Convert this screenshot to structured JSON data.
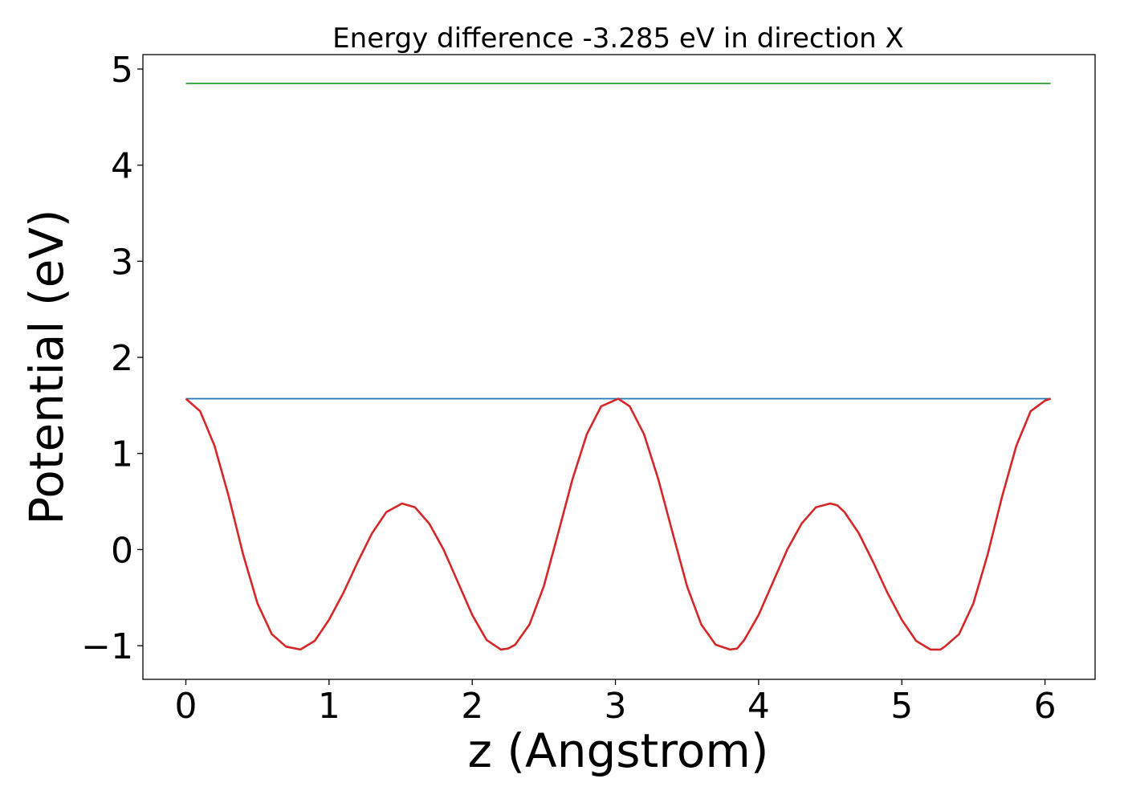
{
  "chart_data": {
    "type": "line",
    "title": "Energy difference -3.285 eV in direction X",
    "xlabel": "z (Angstrom)",
    "ylabel": "Potential (eV)",
    "xlim": [
      -0.3,
      6.35
    ],
    "ylim": [
      -1.35,
      5.15
    ],
    "grid": false,
    "xticks": [
      0,
      1,
      2,
      3,
      4,
      5,
      6
    ],
    "xtick_labels": [
      "0",
      "1",
      "2",
      "3",
      "4",
      "5",
      "6"
    ],
    "yticks": [
      -1,
      0,
      1,
      2,
      3,
      4,
      5
    ],
    "ytick_labels": [
      "−1",
      "0",
      "1",
      "2",
      "3",
      "4",
      "5"
    ],
    "series": [
      {
        "color": "#2ca02c",
        "x": [
          0,
          6.04
        ],
        "y": [
          4.85,
          4.85
        ]
      },
      {
        "color": "#1f77b4",
        "x": [
          0,
          6.04
        ],
        "y": [
          1.57,
          1.57
        ]
      },
      {
        "color": "#d62728",
        "x": [
          0,
          0.1,
          0.2,
          0.3,
          0.4,
          0.5,
          0.6,
          0.7,
          0.8,
          0.9,
          1.0,
          1.1,
          1.2,
          1.3,
          1.4,
          1.51,
          1.6,
          1.7,
          1.8,
          1.9,
          2.0,
          2.1,
          2.2,
          2.25,
          2.3,
          2.4,
          2.5,
          2.6,
          2.7,
          2.8,
          2.9,
          3.02,
          3.1,
          3.2,
          3.3,
          3.4,
          3.5,
          3.6,
          3.7,
          3.8,
          3.85,
          3.9,
          4.0,
          4.1,
          4.2,
          4.3,
          4.4,
          4.5,
          4.55,
          4.6,
          4.7,
          4.8,
          4.9,
          5.0,
          5.1,
          5.2,
          5.27,
          5.3,
          5.4,
          5.5,
          5.6,
          5.7,
          5.8,
          5.9,
          6.0,
          6.04
        ],
        "y": [
          1.57,
          1.44,
          1.08,
          0.55,
          -0.05,
          -0.56,
          -0.88,
          -1.01,
          -1.04,
          -0.95,
          -0.73,
          -0.45,
          -0.13,
          0.17,
          0.39,
          0.48,
          0.44,
          0.27,
          0.0,
          -0.34,
          -0.68,
          -0.94,
          -1.04,
          -1.03,
          -0.99,
          -0.78,
          -0.38,
          0.17,
          0.73,
          1.2,
          1.49,
          1.57,
          1.49,
          1.2,
          0.73,
          0.17,
          -0.38,
          -0.78,
          -0.99,
          -1.04,
          -1.03,
          -0.94,
          -0.68,
          -0.34,
          0.0,
          0.27,
          0.44,
          0.48,
          0.46,
          0.39,
          0.17,
          -0.13,
          -0.45,
          -0.73,
          -0.95,
          -1.04,
          -1.04,
          -1.01,
          -0.88,
          -0.56,
          -0.05,
          0.55,
          1.08,
          1.44,
          1.55,
          1.57
        ]
      }
    ]
  }
}
